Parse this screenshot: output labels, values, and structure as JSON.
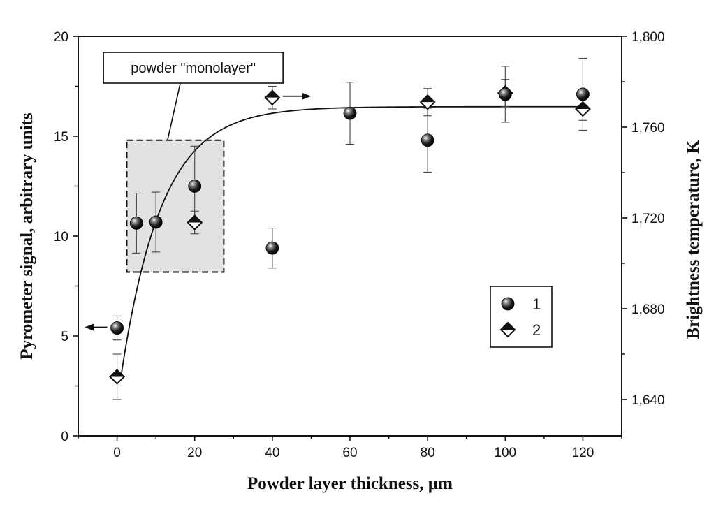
{
  "chart_data": {
    "type": "scatter",
    "xlabel": "Powder layer thickness, µm",
    "ylabel_left": "Pyrometer signal, arbitrary units",
    "ylabel_right": "Brightness temperature, K",
    "xlim": [
      -10,
      130
    ],
    "ylim_left": [
      0,
      20
    ],
    "ylim_right": [
      1624,
      1800
    ],
    "x_ticks": [
      0,
      20,
      40,
      60,
      80,
      100,
      120
    ],
    "y_left_ticks": [
      0,
      5,
      10,
      15,
      20
    ],
    "y_right_ticks": [
      1640,
      1680,
      1720,
      1760,
      1800
    ],
    "y_right_tick_labels": [
      "1,640",
      "1,680",
      "1,720",
      "1,760",
      "1,800"
    ],
    "grid": false,
    "legend_position": "bottom-right",
    "series": [
      {
        "name": "1",
        "axis": "left",
        "marker": "sphere",
        "points": [
          {
            "x": 0,
            "y": 5.4,
            "err": 0.6
          },
          {
            "x": 5,
            "y": 10.65,
            "err": 1.5
          },
          {
            "x": 10,
            "y": 10.7,
            "err": 1.5
          },
          {
            "x": 20,
            "y": 12.5,
            "err": 2.0
          },
          {
            "x": 40,
            "y": 9.4,
            "err": 1.0
          },
          {
            "x": 60,
            "y": 16.15,
            "err": 1.55
          },
          {
            "x": 80,
            "y": 14.8,
            "err": 1.6
          },
          {
            "x": 100,
            "y": 17.1,
            "err": 1.4
          },
          {
            "x": 120,
            "y": 17.1,
            "err": 1.8
          }
        ]
      },
      {
        "name": "2",
        "axis": "right",
        "marker": "half-filled-diamond",
        "points": [
          {
            "x": 0,
            "y": 1650,
            "err": 10
          },
          {
            "x": 20,
            "y": 1718,
            "err": 5
          },
          {
            "x": 40,
            "y": 1773,
            "err": 5
          },
          {
            "x": 80,
            "y": 1771,
            "err": 6
          },
          {
            "x": 100,
            "y": 1775,
            "err": 6
          },
          {
            "x": 120,
            "y": 1768,
            "err": 5
          }
        ]
      }
    ],
    "fit_curve": {
      "axis": "right",
      "form": "saturating exponential",
      "y0": 1650,
      "y_max": 1769,
      "tau": 10.5,
      "x_start": 1
    },
    "annotations": {
      "monolayer_label": "powder \"monolayer\"",
      "monolayer_region": {
        "x": [
          2.5,
          27.5
        ],
        "y_left": [
          8.2,
          14.8
        ]
      }
    }
  }
}
